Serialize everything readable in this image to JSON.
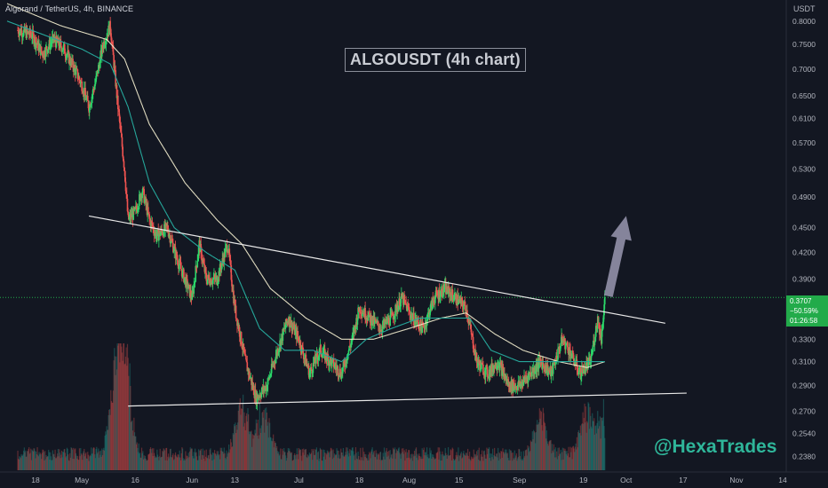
{
  "header": {
    "symbol_line": "Algorand / TetherUS, 4h, BINANCE"
  },
  "title_box": "ALGOUSDT (4h chart)",
  "watermark": "@HexaTrades",
  "price_axis": {
    "currency": "USDT",
    "current_price": "0.3707",
    "change": "−50.59%",
    "countdown": "01:26:58"
  },
  "colors": {
    "background": "#131722",
    "bull": "#26a69a",
    "bull_bright": "#2bd96a",
    "bear": "#ef5350",
    "ma_fast": "#26a69a",
    "ma_slow": "#f5f0d0",
    "trendline": "#e8e8e8",
    "arrow": "#9a98b0",
    "price_tag": "#22ab4a"
  },
  "chart_data": {
    "type": "candlestick",
    "title": "ALGOUSDT (4h chart)",
    "y_scale": "log",
    "ylim": [
      0.228,
      0.84
    ],
    "y_ticks": [
      0.8,
      0.75,
      0.7,
      0.65,
      0.61,
      0.57,
      0.53,
      0.49,
      0.45,
      0.42,
      0.39,
      0.33,
      0.31,
      0.29,
      0.27,
      0.254,
      0.238
    ],
    "x_ticks": [
      {
        "label": "18",
        "date": "2021-04-18"
      },
      {
        "label": "May",
        "date": "2021-05-01"
      },
      {
        "label": "16",
        "date": "2021-05-16"
      },
      {
        "label": "Jun",
        "date": "2021-06-01"
      },
      {
        "label": "13",
        "date": "2021-06-13"
      },
      {
        "label": "Jul",
        "date": "2021-07-01"
      },
      {
        "label": "18",
        "date": "2021-07-18"
      },
      {
        "label": "Aug",
        "date": "2021-08-01"
      },
      {
        "label": "15",
        "date": "2021-08-15"
      },
      {
        "label": "Sep",
        "date": "2021-09-01"
      },
      {
        "label": "19",
        "date": "2021-09-19"
      },
      {
        "label": "Oct",
        "date": "2021-10-01"
      },
      {
        "label": "17",
        "date": "2021-10-17"
      },
      {
        "label": "Nov",
        "date": "2021-11-01"
      },
      {
        "label": "14",
        "date": "2021-11-14"
      }
    ],
    "current_price": 0.3707,
    "price_path": [
      [
        "2021-04-13",
        0.78
      ],
      [
        "2021-04-17",
        0.77
      ],
      [
        "2021-04-20",
        0.73
      ],
      [
        "2021-04-23",
        0.76
      ],
      [
        "2021-04-26",
        0.74
      ],
      [
        "2021-04-29",
        0.7
      ],
      [
        "2021-05-01",
        0.67
      ],
      [
        "2021-05-03",
        0.63
      ],
      [
        "2021-05-05",
        0.68
      ],
      [
        "2021-05-07",
        0.75
      ],
      [
        "2021-05-09",
        0.79
      ],
      [
        "2021-05-11",
        0.64
      ],
      [
        "2021-05-13",
        0.53
      ],
      [
        "2021-05-14",
        0.46
      ],
      [
        "2021-05-16",
        0.47
      ],
      [
        "2021-05-18",
        0.5
      ],
      [
        "2021-05-20",
        0.46
      ],
      [
        "2021-05-22",
        0.44
      ],
      [
        "2021-05-25",
        0.45
      ],
      [
        "2021-05-28",
        0.41
      ],
      [
        "2021-06-01",
        0.37
      ],
      [
        "2021-06-03",
        0.43
      ],
      [
        "2021-06-05",
        0.39
      ],
      [
        "2021-06-08",
        0.39
      ],
      [
        "2021-06-11",
        0.43
      ],
      [
        "2021-06-13",
        0.36
      ],
      [
        "2021-06-16",
        0.31
      ],
      [
        "2021-06-19",
        0.28
      ],
      [
        "2021-06-22",
        0.29
      ],
      [
        "2021-06-25",
        0.32
      ],
      [
        "2021-06-28",
        0.35
      ],
      [
        "2021-07-01",
        0.33
      ],
      [
        "2021-07-04",
        0.3
      ],
      [
        "2021-07-07",
        0.32
      ],
      [
        "2021-07-10",
        0.31
      ],
      [
        "2021-07-13",
        0.3
      ],
      [
        "2021-07-16",
        0.33
      ],
      [
        "2021-07-18",
        0.36
      ],
      [
        "2021-07-21",
        0.35
      ],
      [
        "2021-07-24",
        0.34
      ],
      [
        "2021-07-27",
        0.35
      ],
      [
        "2021-07-30",
        0.37
      ],
      [
        "2021-08-02",
        0.35
      ],
      [
        "2021-08-05",
        0.34
      ],
      [
        "2021-08-08",
        0.37
      ],
      [
        "2021-08-11",
        0.38
      ],
      [
        "2021-08-14",
        0.37
      ],
      [
        "2021-08-17",
        0.36
      ],
      [
        "2021-08-20",
        0.31
      ],
      [
        "2021-08-23",
        0.3
      ],
      [
        "2021-08-26",
        0.31
      ],
      [
        "2021-08-29",
        0.29
      ],
      [
        "2021-09-01",
        0.29
      ],
      [
        "2021-09-04",
        0.3
      ],
      [
        "2021-09-07",
        0.31
      ],
      [
        "2021-09-10",
        0.3
      ],
      [
        "2021-09-13",
        0.33
      ],
      [
        "2021-09-15",
        0.32
      ],
      [
        "2021-09-18",
        0.3
      ],
      [
        "2021-09-21",
        0.31
      ],
      [
        "2021-09-23",
        0.35
      ],
      [
        "2021-09-24",
        0.33
      ],
      [
        "2021-09-25",
        0.3707
      ]
    ],
    "ma_fast_path": [
      [
        "2021-04-10",
        0.8
      ],
      [
        "2021-05-01",
        0.74
      ],
      [
        "2021-05-09",
        0.71
      ],
      [
        "2021-05-14",
        0.63
      ],
      [
        "2021-05-20",
        0.51
      ],
      [
        "2021-05-27",
        0.45
      ],
      [
        "2021-06-05",
        0.42
      ],
      [
        "2021-06-13",
        0.4
      ],
      [
        "2021-06-20",
        0.34
      ],
      [
        "2021-06-27",
        0.32
      ],
      [
        "2021-07-05",
        0.32
      ],
      [
        "2021-07-13",
        0.31
      ],
      [
        "2021-07-20",
        0.33
      ],
      [
        "2021-07-27",
        0.34
      ],
      [
        "2021-08-04",
        0.35
      ],
      [
        "2021-08-12",
        0.35
      ],
      [
        "2021-08-18",
        0.35
      ],
      [
        "2021-08-24",
        0.32
      ],
      [
        "2021-09-01",
        0.31
      ],
      [
        "2021-09-08",
        0.31
      ],
      [
        "2021-09-15",
        0.31
      ],
      [
        "2021-09-21",
        0.31
      ],
      [
        "2021-09-25",
        0.31
      ]
    ],
    "ma_slow_path": [
      [
        "2021-04-10",
        0.84
      ],
      [
        "2021-04-25",
        0.79
      ],
      [
        "2021-05-08",
        0.76
      ],
      [
        "2021-05-13",
        0.72
      ],
      [
        "2021-05-20",
        0.6
      ],
      [
        "2021-05-30",
        0.51
      ],
      [
        "2021-06-08",
        0.46
      ],
      [
        "2021-06-15",
        0.43
      ],
      [
        "2021-06-23",
        0.38
      ],
      [
        "2021-07-03",
        0.35
      ],
      [
        "2021-07-13",
        0.33
      ],
      [
        "2021-07-22",
        0.33
      ],
      [
        "2021-08-01",
        0.34
      ],
      [
        "2021-08-10",
        0.35
      ],
      [
        "2021-08-17",
        0.355
      ],
      [
        "2021-08-25",
        0.335
      ],
      [
        "2021-09-02",
        0.32
      ],
      [
        "2021-09-12",
        0.31
      ],
      [
        "2021-09-20",
        0.305
      ],
      [
        "2021-09-25",
        0.31
      ]
    ],
    "resistance_line": [
      [
        "2021-05-03",
        0.465
      ],
      [
        "2021-10-12",
        0.345
      ]
    ],
    "support_line": [
      [
        "2021-05-14",
        0.274
      ],
      [
        "2021-10-18",
        0.284
      ]
    ],
    "projection_arrow": [
      [
        "2021-09-26",
        0.372
      ],
      [
        "2021-10-01",
        0.465
      ]
    ],
    "volume": {
      "scale": "relative",
      "peaks": [
        [
          "2021-05-11",
          1.0
        ],
        [
          "2021-05-13",
          0.9
        ],
        [
          "2021-06-15",
          0.55
        ],
        [
          "2021-06-21",
          0.45
        ],
        [
          "2021-09-07",
          0.45
        ],
        [
          "2021-09-20",
          0.5
        ],
        [
          "2021-09-25",
          0.45
        ]
      ]
    }
  }
}
